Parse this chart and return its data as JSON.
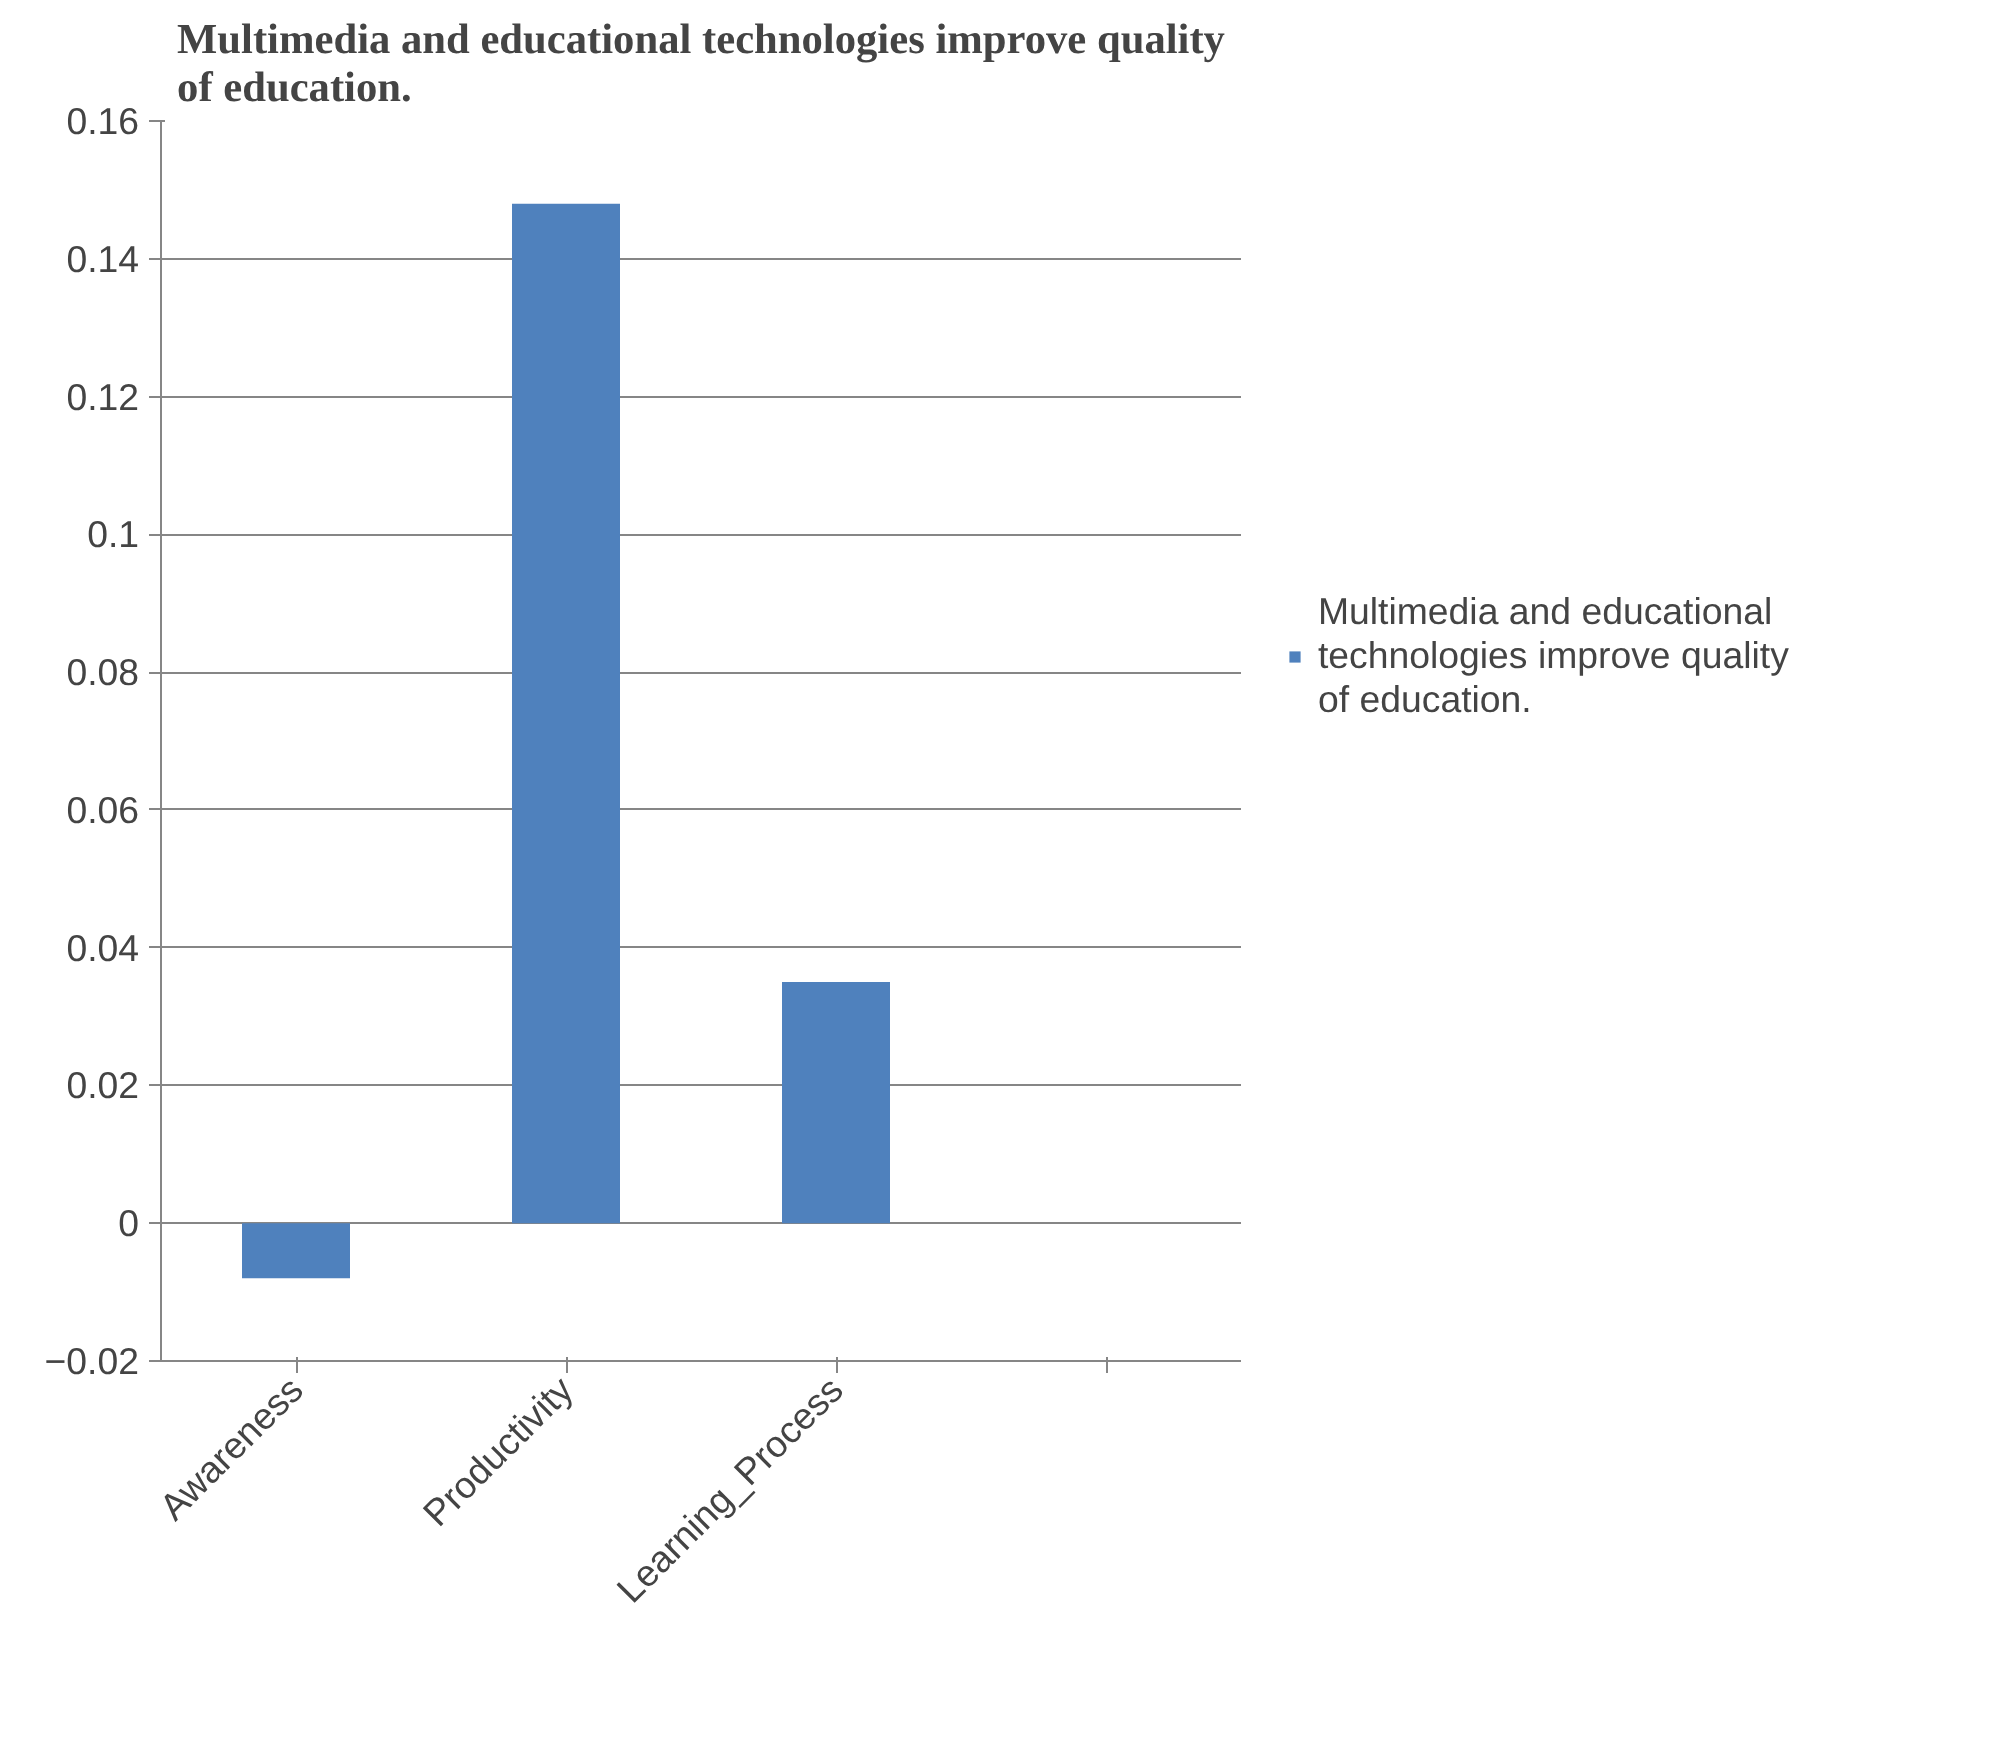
{
  "chart_data": {
    "type": "bar",
    "title": "Multimedia and educational technologies improve quality of education.",
    "categories": [
      "Awareness",
      "Productivity",
      "Learning_Process",
      null
    ],
    "series": [
      {
        "name": "Multimedia and educational technologies improve quality of education.",
        "color": "#4f81bd",
        "values": [
          -0.008,
          0.148,
          0.035,
          null
        ]
      }
    ],
    "ylim": [
      -0.02,
      0.16
    ],
    "yticks": [
      -0.02,
      0,
      0.02,
      0.04,
      0.06,
      0.08,
      {
        "value": 0.1,
        "label": "0.1"
      },
      0.12,
      0.14,
      0.16
    ],
    "grid": "y",
    "legend": "right"
  }
}
